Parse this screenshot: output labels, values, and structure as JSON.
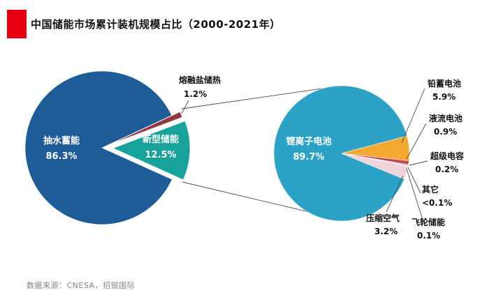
{
  "title": "中国储能市场累计装机规模占比（2000-2021年）",
  "source": "数据来源：CNESA，招银国际",
  "brand_color": "#E60012",
  "chart_data": [
    {
      "type": "pie",
      "title": "中国储能市场累计装机规模占比（2000-2021年）",
      "legend_position": "none",
      "slices": [
        {
          "key": "pumped-hydro",
          "label": "抽水蓄能",
          "value": 86.3,
          "display": "86.3%",
          "color": "#1E5C97"
        },
        {
          "key": "molten-salt-thermal",
          "label": "熔融盐储热",
          "value": 1.2,
          "display": "1.2%",
          "color": "#93383C"
        },
        {
          "key": "new-type-storage",
          "label": "新型储能",
          "value": 12.5,
          "display": "12.5%",
          "color": "#17A39B"
        }
      ]
    },
    {
      "type": "pie",
      "title": "新型储能细分占比",
      "legend_position": "none",
      "slices": [
        {
          "key": "lithium-ion",
          "label": "锂离子电池",
          "value": 89.7,
          "display": "89.7%",
          "color": "#2BA2C6"
        },
        {
          "key": "lead-acid",
          "label": "铅蓄电池",
          "value": 5.9,
          "display": "5.9%",
          "color": "#F5A832"
        },
        {
          "key": "flow-battery",
          "label": "液流电池",
          "value": 0.9,
          "display": "0.9%",
          "color": "#C04A52"
        },
        {
          "key": "supercapacitor",
          "label": "超级电容",
          "value": 0.2,
          "display": "0.2%",
          "color": "#8C2F36"
        },
        {
          "key": "other",
          "label": "其它",
          "value": 0.05,
          "display": "<0.1%",
          "color": "#9A9A9A"
        },
        {
          "key": "flywheel",
          "label": "飞轮储能",
          "value": 0.1,
          "display": "0.1%",
          "color": "#D96A8B"
        },
        {
          "key": "compressed-air",
          "label": "压缩空气",
          "value": 3.2,
          "display": "3.2%",
          "color": "#F0D3DA"
        }
      ]
    }
  ]
}
